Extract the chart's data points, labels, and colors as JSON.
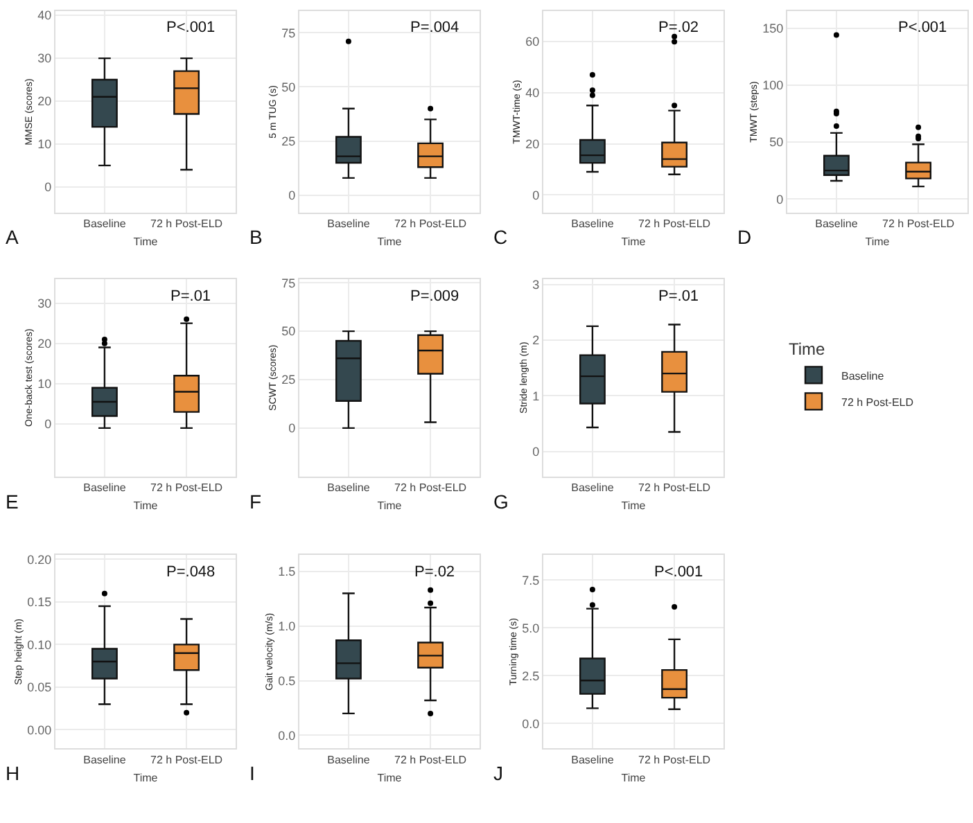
{
  "chart_data": [
    {
      "type": "box",
      "ylabel": "MMSE (scores)",
      "xlabel": "Time",
      "categories": [
        "Baseline",
        "72 h Post-ELD"
      ],
      "ylim": [
        -6,
        41
      ],
      "yticks": [
        0,
        10,
        20,
        30,
        40
      ],
      "grid": true,
      "annotations": [
        "A",
        "P<.001"
      ],
      "series": [
        {
          "color": "#34484f",
          "boxes": [
            {
              "low": 5,
              "q1": 14,
              "median": 21,
              "q3": 25,
              "high": 30
            },
            null
          ]
        },
        {
          "color": "#e8903e",
          "boxes": [
            null,
            {
              "low": 4,
              "q1": 17,
              "median": 23,
              "q3": 27,
              "high": 30
            }
          ]
        }
      ]
    },
    {
      "type": "box",
      "ylabel": "5 m TUG (s)",
      "xlabel": "Time",
      "categories": [
        "Baseline",
        "72 h Post-ELD"
      ],
      "ylim": [
        -8,
        85
      ],
      "yticks": [
        0,
        25,
        50,
        75
      ],
      "grid": true,
      "annotations": [
        "B",
        "P=.004"
      ],
      "series": [
        {
          "color": "#34484f",
          "boxes": [
            {
              "low": 8,
              "q1": 15,
              "median": 18,
              "q3": 27,
              "high": 40,
              "outliers": [
                71
              ]
            },
            null
          ]
        },
        {
          "color": "#e8903e",
          "boxes": [
            null,
            {
              "low": 8,
              "q1": 13,
              "median": 18,
              "q3": 24,
              "high": 35,
              "outliers": [
                40
              ]
            }
          ]
        }
      ]
    },
    {
      "type": "box",
      "ylabel": "TMWT-time (s)",
      "xlabel": "Time",
      "categories": [
        "Baseline",
        "72 h Post-ELD"
      ],
      "ylim": [
        -7,
        72
      ],
      "yticks": [
        0,
        20,
        40,
        60
      ],
      "grid": true,
      "annotations": [
        "C",
        "P=.02"
      ],
      "series": [
        {
          "color": "#34484f",
          "boxes": [
            {
              "low": 9,
              "q1": 12.5,
              "median": 15.5,
              "q3": 21.5,
              "high": 35,
              "outliers": [
                39,
                41,
                47
              ]
            },
            null
          ]
        },
        {
          "color": "#e8903e",
          "boxes": [
            null,
            {
              "low": 8,
              "q1": 11,
              "median": 14,
              "q3": 20.5,
              "high": 33,
              "outliers": [
                35,
                60,
                62
              ]
            }
          ]
        }
      ]
    },
    {
      "type": "box",
      "ylabel": "TMWT (steps)",
      "xlabel": "Time",
      "categories": [
        "Baseline",
        "72 h Post-ELD"
      ],
      "ylim": [
        -12,
        165
      ],
      "yticks": [
        0,
        50,
        100,
        150
      ],
      "grid": true,
      "annotations": [
        "D",
        "P<.001"
      ],
      "series": [
        {
          "color": "#34484f",
          "boxes": [
            {
              "low": 16,
              "q1": 21,
              "median": 25,
              "q3": 38,
              "high": 58,
              "outliers": [
                64,
                75,
                77,
                144
              ]
            },
            null
          ]
        },
        {
          "color": "#e8903e",
          "boxes": [
            null,
            {
              "low": 11,
              "q1": 18,
              "median": 24,
              "q3": 32,
              "high": 48,
              "outliers": [
                53,
                55,
                63
              ]
            }
          ]
        }
      ]
    },
    {
      "type": "box",
      "ylabel": "One-back test (scores)",
      "xlabel": "Time",
      "categories": [
        "Baseline",
        "72 h Post-ELD"
      ],
      "ylim": [
        -13,
        36
      ],
      "yticks": [
        0,
        10,
        20,
        30
      ],
      "grid": true,
      "annotations": [
        "E",
        "P=.01"
      ],
      "series": [
        {
          "color": "#34484f",
          "boxes": [
            {
              "low": -1,
              "q1": 2,
              "median": 5.5,
              "q3": 9,
              "high": 19,
              "outliers": [
                20,
                21
              ]
            },
            null
          ]
        },
        {
          "color": "#e8903e",
          "boxes": [
            null,
            {
              "low": -1,
              "q1": 3,
              "median": 8,
              "q3": 12,
              "high": 25,
              "outliers": [
                26
              ]
            }
          ]
        }
      ]
    },
    {
      "type": "box",
      "ylabel": "SCWT (scores)",
      "xlabel": "Time",
      "categories": [
        "Baseline",
        "72 h Post-ELD"
      ],
      "ylim": [
        -25,
        77
      ],
      "yticks": [
        0,
        25,
        50,
        75
      ],
      "grid": true,
      "annotations": [
        "F",
        "P=.009"
      ],
      "series": [
        {
          "color": "#34484f",
          "boxes": [
            {
              "low": 0,
              "q1": 14,
              "median": 36,
              "q3": 45,
              "high": 50
            },
            null
          ]
        },
        {
          "color": "#e8903e",
          "boxes": [
            null,
            {
              "low": 3,
              "q1": 28,
              "median": 40,
              "q3": 48,
              "high": 50
            }
          ]
        }
      ]
    },
    {
      "type": "box",
      "ylabel": "Stride length (m)",
      "xlabel": "Time",
      "categories": [
        "Baseline",
        "72 h Post-ELD"
      ],
      "ylim": [
        -0.45,
        3.1
      ],
      "yticks": [
        0,
        1,
        2,
        3
      ],
      "grid": true,
      "annotations": [
        "G",
        "P=.01"
      ],
      "legend": "right",
      "legend_title": "Time",
      "series": [
        {
          "name": "Baseline",
          "color": "#34484f",
          "boxes": [
            {
              "low": 0.43,
              "q1": 0.86,
              "median": 1.35,
              "q3": 1.73,
              "high": 2.25
            },
            null
          ]
        },
        {
          "name": "72 h Post-ELD",
          "color": "#e8903e",
          "boxes": [
            null,
            {
              "low": 0.35,
              "q1": 1.07,
              "median": 1.4,
              "q3": 1.79,
              "high": 2.28
            }
          ]
        }
      ]
    },
    {
      "type": "box",
      "ylabel": "Step height (m)",
      "xlabel": "Time",
      "categories": [
        "Baseline",
        "72 h Post-ELD"
      ],
      "ylim": [
        -0.022,
        0.205
      ],
      "yticks": [
        {
          "value": 0,
          "label": "0.00"
        },
        {
          "value": 0.05,
          "label": "0.05"
        },
        {
          "value": 0.1,
          "label": "0.10"
        },
        {
          "value": 0.15,
          "label": "0.15"
        },
        {
          "value": 0.2,
          "label": "0.20"
        }
      ],
      "grid": true,
      "annotations": [
        "H",
        "P=.048"
      ],
      "series": [
        {
          "color": "#34484f",
          "boxes": [
            {
              "low": 0.03,
              "q1": 0.06,
              "median": 0.08,
              "q3": 0.095,
              "high": 0.145,
              "outliers": [
                0.16
              ]
            },
            null
          ]
        },
        {
          "color": "#e8903e",
          "boxes": [
            null,
            {
              "low": 0.03,
              "q1": 0.07,
              "median": 0.09,
              "q3": 0.1,
              "high": 0.13,
              "outliers": [
                0.02
              ]
            }
          ]
        }
      ]
    },
    {
      "type": "box",
      "ylabel": "Gait velocity (m/s)",
      "xlabel": "Time",
      "categories": [
        "Baseline",
        "72 h Post-ELD"
      ],
      "ylim": [
        -0.12,
        1.65
      ],
      "yticks": [
        {
          "value": 0,
          "label": "0.0"
        },
        {
          "value": 0.5,
          "label": "0.5"
        },
        {
          "value": 1,
          "label": "1.0"
        },
        {
          "value": 1.5,
          "label": "1.5"
        }
      ],
      "grid": true,
      "annotations": [
        "I",
        "P=.02"
      ],
      "series": [
        {
          "color": "#34484f",
          "boxes": [
            {
              "low": 0.2,
              "q1": 0.52,
              "median": 0.66,
              "q3": 0.87,
              "high": 1.3
            },
            null
          ]
        },
        {
          "color": "#e8903e",
          "boxes": [
            null,
            {
              "low": 0.32,
              "q1": 0.62,
              "median": 0.73,
              "q3": 0.85,
              "high": 1.17,
              "outliers": [
                0.2,
                1.21,
                1.33
              ]
            }
          ]
        }
      ]
    },
    {
      "type": "box",
      "ylabel": "Turning time (s)",
      "xlabel": "Time",
      "categories": [
        "Baseline",
        "72 h Post-ELD"
      ],
      "ylim": [
        -1.3,
        8.8
      ],
      "yticks": [
        {
          "value": 0,
          "label": "0.0"
        },
        {
          "value": 2.5,
          "label": "2.5"
        },
        {
          "value": 5,
          "label": "5.0"
        },
        {
          "value": 7.5,
          "label": "7.5"
        }
      ],
      "grid": true,
      "annotations": [
        "J",
        "P<.001"
      ],
      "series": [
        {
          "color": "#34484f",
          "boxes": [
            {
              "low": 0.8,
              "q1": 1.55,
              "median": 2.25,
              "q3": 3.4,
              "high": 6.0,
              "outliers": [
                6.2,
                7.0
              ]
            },
            null
          ]
        },
        {
          "color": "#e8903e",
          "boxes": [
            null,
            {
              "low": 0.75,
              "q1": 1.35,
              "median": 1.8,
              "q3": 2.8,
              "high": 4.4,
              "outliers": [
                6.1
              ]
            }
          ]
        }
      ]
    }
  ]
}
